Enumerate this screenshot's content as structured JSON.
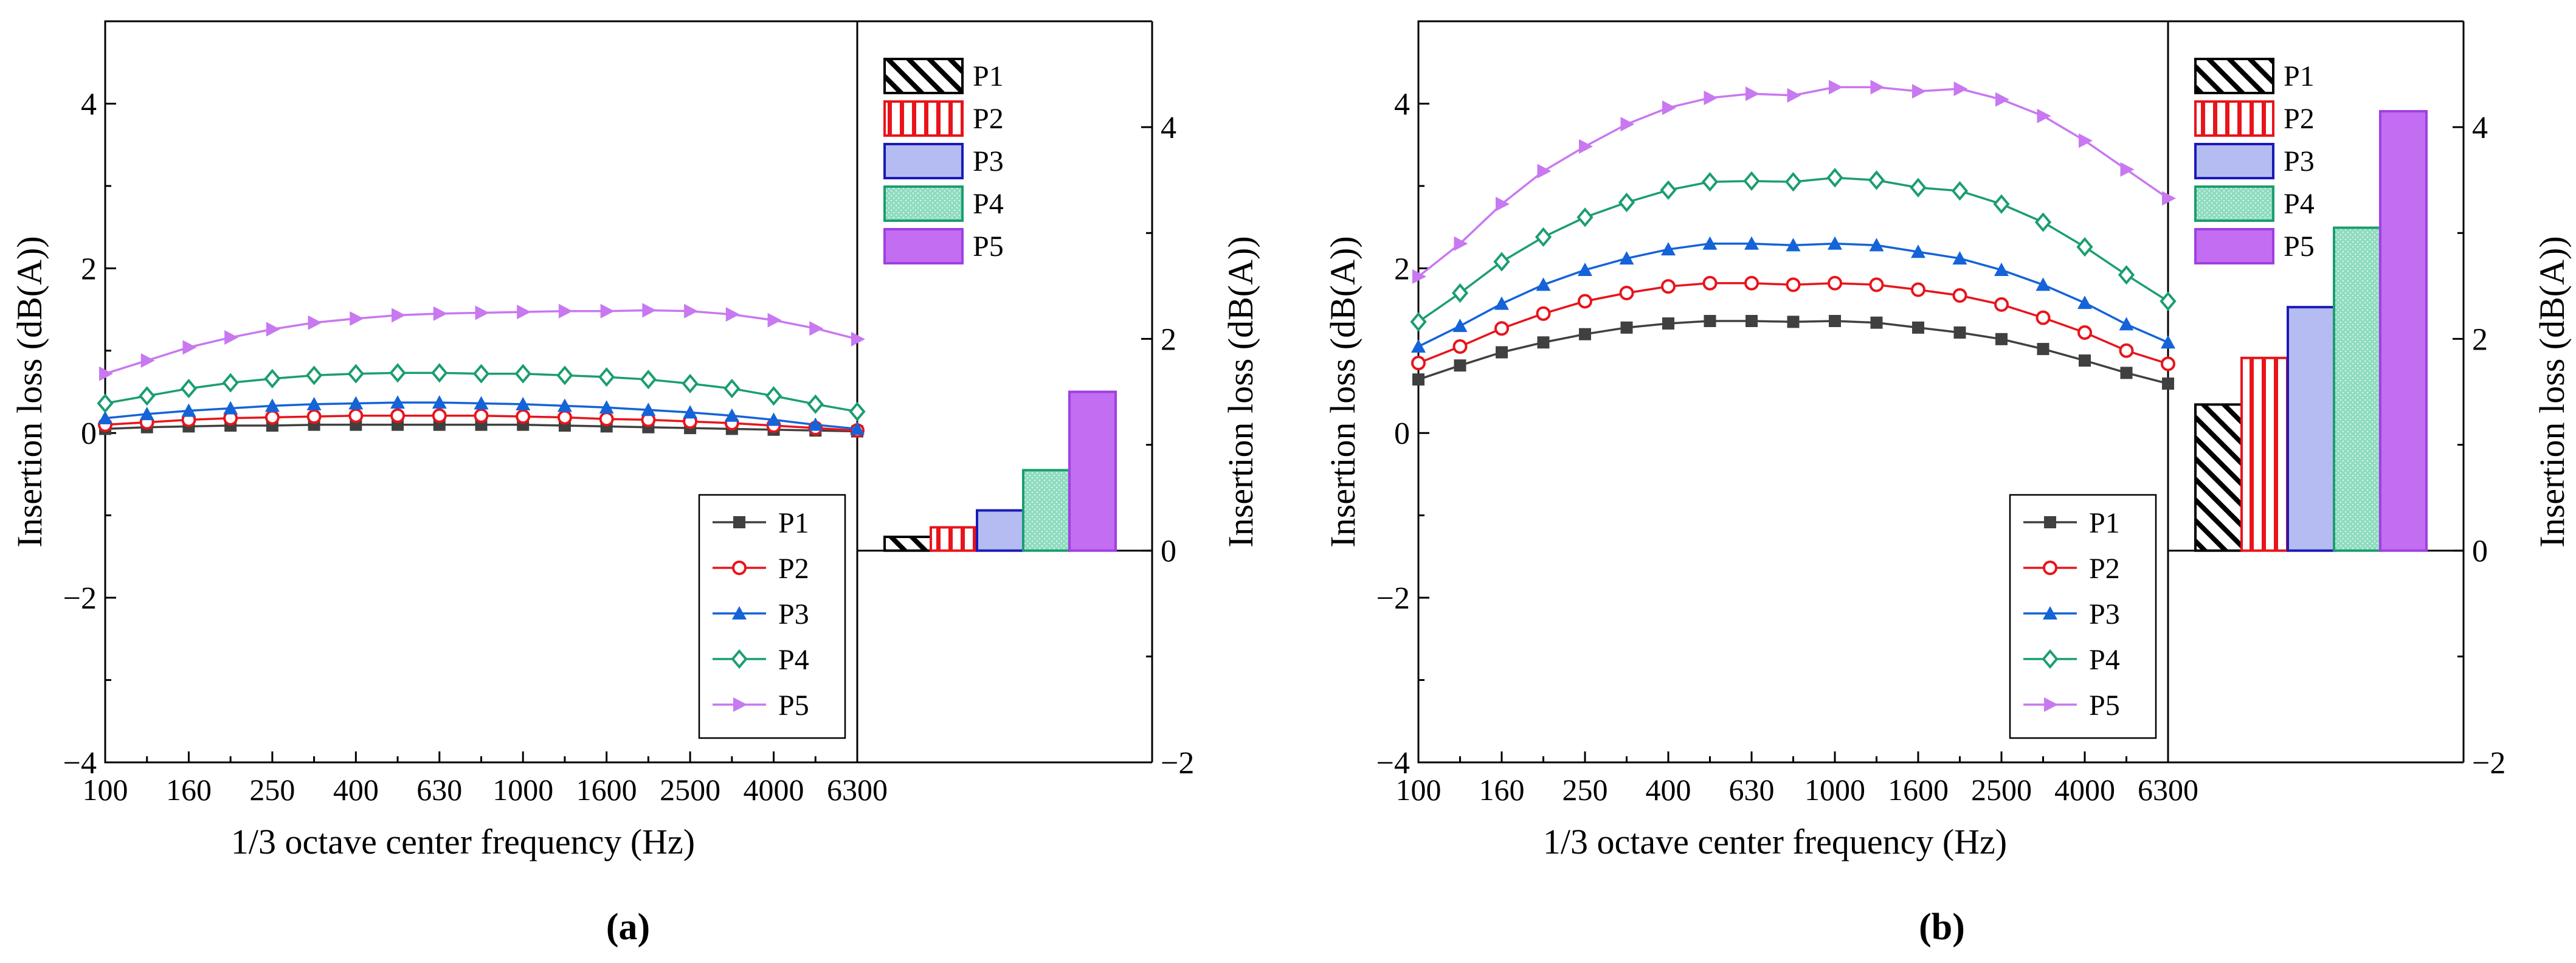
{
  "figure": {
    "panel_labels": [
      "(a)",
      "(b)"
    ]
  },
  "chart_data": [
    {
      "type": "line",
      "panel": "a",
      "title": "",
      "xlabel": "1/3 octave center frequency (Hz)",
      "ylabel": "Insertion loss (dB(A))",
      "ylim": [
        -4,
        5
      ],
      "y_ticks": [
        "−4",
        "−2",
        "0",
        "2",
        "4"
      ],
      "x_tick_labels": [
        "100",
        "160",
        "250",
        "400",
        "630",
        "1000",
        "1600",
        "2500",
        "4000",
        "6300"
      ],
      "x": [
        "100",
        "125",
        "160",
        "200",
        "250",
        "315",
        "400",
        "500",
        "630",
        "800",
        "1000",
        "1250",
        "1600",
        "2000",
        "2500",
        "3150",
        "4000",
        "5000",
        "6300"
      ],
      "legend": [
        "P1",
        "P2",
        "P3",
        "P4",
        "P5"
      ],
      "legend_position": "lower-right",
      "series": [
        {
          "name": "P1",
          "color": "#404040",
          "marker": "square",
          "values": [
            0.05,
            0.07,
            0.08,
            0.09,
            0.09,
            0.1,
            0.1,
            0.1,
            0.1,
            0.1,
            0.1,
            0.09,
            0.08,
            0.07,
            0.06,
            0.05,
            0.04,
            0.03,
            0.02
          ]
        },
        {
          "name": "P2",
          "color": "#e8141b",
          "marker": "circle",
          "values": [
            0.1,
            0.13,
            0.16,
            0.18,
            0.19,
            0.2,
            0.21,
            0.21,
            0.21,
            0.21,
            0.2,
            0.19,
            0.17,
            0.16,
            0.14,
            0.12,
            0.09,
            0.06,
            0.03
          ]
        },
        {
          "name": "P3",
          "color": "#1463d8",
          "marker": "triangle",
          "values": [
            0.18,
            0.23,
            0.27,
            0.3,
            0.33,
            0.35,
            0.36,
            0.37,
            0.37,
            0.36,
            0.35,
            0.33,
            0.31,
            0.28,
            0.25,
            0.21,
            0.16,
            0.1,
            0.05
          ]
        },
        {
          "name": "P4",
          "color": "#1a9e6e",
          "marker": "diamond",
          "values": [
            0.36,
            0.45,
            0.54,
            0.61,
            0.66,
            0.7,
            0.72,
            0.73,
            0.73,
            0.72,
            0.72,
            0.7,
            0.68,
            0.65,
            0.6,
            0.54,
            0.45,
            0.35,
            0.26
          ]
        },
        {
          "name": "P5",
          "color": "#c878f0",
          "marker": "triangle-right",
          "values": [
            0.72,
            0.88,
            1.04,
            1.16,
            1.26,
            1.34,
            1.39,
            1.43,
            1.45,
            1.46,
            1.47,
            1.48,
            1.48,
            1.49,
            1.48,
            1.44,
            1.37,
            1.27,
            1.14
          ]
        }
      ],
      "bar_inset": {
        "type": "bar",
        "ylabel": "Insertion loss (dB(A))",
        "ylim": [
          -2,
          5
        ],
        "y_ticks": [
          "−2",
          "0",
          "2",
          "4"
        ],
        "categories": [
          "P1",
          "P2",
          "P3",
          "P4",
          "P5"
        ],
        "values": [
          0.13,
          0.22,
          0.38,
          0.76,
          1.5
        ],
        "legend_position": "top-left"
      }
    },
    {
      "type": "line",
      "panel": "b",
      "title": "",
      "xlabel": "1/3 octave center frequency (Hz)",
      "ylabel": "Insertion loss (dB(A))",
      "ylim": [
        -4,
        5
      ],
      "y_ticks": [
        "−4",
        "−2",
        "0",
        "2",
        "4"
      ],
      "x_tick_labels": [
        "100",
        "160",
        "250",
        "400",
        "630",
        "1000",
        "1600",
        "2500",
        "4000",
        "6300"
      ],
      "x": [
        "100",
        "125",
        "160",
        "200",
        "250",
        "315",
        "400",
        "500",
        "630",
        "800",
        "1000",
        "1250",
        "1600",
        "2000",
        "2500",
        "3150",
        "4000",
        "5000",
        "6300"
      ],
      "legend": [
        "P1",
        "P2",
        "P3",
        "P4",
        "P5"
      ],
      "legend_position": "lower-right",
      "series": [
        {
          "name": "P1",
          "color": "#404040",
          "marker": "square",
          "values": [
            0.65,
            0.82,
            0.98,
            1.1,
            1.2,
            1.28,
            1.33,
            1.36,
            1.36,
            1.35,
            1.36,
            1.34,
            1.28,
            1.22,
            1.14,
            1.02,
            0.88,
            0.73,
            0.6
          ]
        },
        {
          "name": "P2",
          "color": "#e8141b",
          "marker": "circle",
          "values": [
            0.85,
            1.05,
            1.27,
            1.45,
            1.6,
            1.7,
            1.78,
            1.82,
            1.82,
            1.8,
            1.82,
            1.8,
            1.74,
            1.67,
            1.56,
            1.4,
            1.22,
            1.0,
            0.84
          ]
        },
        {
          "name": "P3",
          "color": "#1463d8",
          "marker": "triangle",
          "values": [
            1.05,
            1.3,
            1.57,
            1.8,
            1.98,
            2.12,
            2.23,
            2.3,
            2.3,
            2.28,
            2.3,
            2.28,
            2.2,
            2.12,
            1.98,
            1.8,
            1.58,
            1.32,
            1.1
          ]
        },
        {
          "name": "P4",
          "color": "#1a9e6e",
          "marker": "diamond",
          "values": [
            1.35,
            1.7,
            2.08,
            2.38,
            2.62,
            2.8,
            2.95,
            3.05,
            3.06,
            3.05,
            3.1,
            3.07,
            2.98,
            2.94,
            2.78,
            2.56,
            2.26,
            1.92,
            1.6
          ]
        },
        {
          "name": "P5",
          "color": "#c878f0",
          "marker": "triangle-right",
          "values": [
            1.9,
            2.3,
            2.78,
            3.18,
            3.48,
            3.75,
            3.95,
            4.07,
            4.12,
            4.1,
            4.2,
            4.2,
            4.15,
            4.18,
            4.05,
            3.85,
            3.55,
            3.2,
            2.85
          ]
        }
      ],
      "bar_inset": {
        "type": "bar",
        "ylabel": "Insertion loss (dB(A))",
        "ylim": [
          -2,
          5
        ],
        "y_ticks": [
          "−2",
          "0",
          "2",
          "4"
        ],
        "categories": [
          "P1",
          "P2",
          "P3",
          "P4",
          "P5"
        ],
        "values": [
          1.38,
          1.82,
          2.3,
          3.05,
          4.15
        ],
        "legend_position": "top-left"
      }
    }
  ]
}
